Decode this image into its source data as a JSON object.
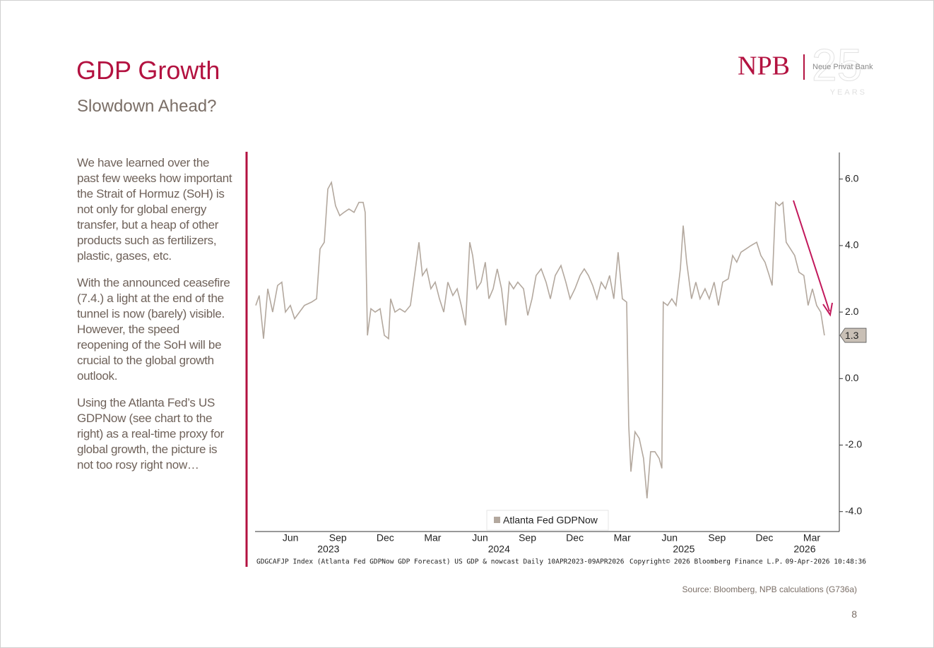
{
  "header": {
    "title": "GDP Growth",
    "subtitle": "Slowdown Ahead?"
  },
  "logo": {
    "name": "NPB",
    "subname": "Neue Privat Bank",
    "anniversary": "25",
    "years": "YEARS"
  },
  "body": {
    "paragraphs": [
      "We have learned over the past few weeks how important the Strait of Hormuz (SoH) is not only for global energy transfer, but a heap of other products such as fertilizers, plastic, gases, etc.",
      "With the announced ceasefire (7.4.) a light at the end of the tunnel is now (barely) visible. However, the speed reopening of the SoH will be crucial to the global growth outlook.",
      "Using the Atlanta Fed’s US GDPNow (see chart to the right) as a real-time proxy for global growth, the picture is not too rosy right now…"
    ]
  },
  "chart_data": {
    "type": "line",
    "x": [
      3.3,
      3.52,
      3.79,
      4.06,
      4.37,
      4.68,
      4.95,
      5.18,
      5.49,
      5.76,
      6.07,
      6.38,
      6.83,
      7.15,
      7.37,
      7.64,
      7.86,
      8.09,
      8.35,
      8.62,
      8.89,
      9.2,
      9.52,
      9.83,
      10.1,
      10.23,
      10.37,
      10.59,
      10.86,
      11.17,
      11.44,
      11.71,
      11.84,
      12.11,
      12.42,
      12.74,
      13.09,
      13.41,
      13.63,
      13.85,
      14.12,
      14.39,
      14.66,
      14.93,
      15.2,
      15.46,
      15.78,
      16.05,
      16.31,
      16.58,
      16.85,
      17.03,
      17.3,
      17.57,
      17.83,
      18.06,
      18.33,
      18.59,
      18.86,
      19.13,
      19.35,
      19.62,
      19.89,
      20.25,
      20.52,
      20.79,
      21.05,
      21.37,
      21.68,
      21.95,
      22.26,
      22.62,
      22.93,
      23.2,
      23.51,
      23.83,
      24.1,
      24.36,
      24.63,
      24.9,
      25.17,
      25.44,
      25.7,
      25.97,
      26.24,
      26.51,
      26.78,
      26.91,
      27.05,
      27.31,
      27.58,
      27.85,
      28.07,
      28.3,
      28.57,
      28.84,
      29.01,
      29.1,
      29.37,
      29.64,
      29.91,
      30.18,
      30.36,
      30.58,
      30.89,
      31.16,
      31.43,
      31.74,
      32.01,
      32.32,
      32.59,
      32.86,
      33.22,
      33.49,
      33.75,
      34.02,
      34.34,
      34.65,
      35.01,
      35.28,
      35.54,
      35.81,
      35.99,
      36.21,
      36.44,
      36.67,
      36.88,
      37.15,
      37.42,
      37.69,
      38.0,
      38.27,
      38.54,
      38.81,
      39.07,
      39.3
    ],
    "series": [
      {
        "name": "Atlanta Fed GDPNow",
        "color": "#b3a89e",
        "values": [
          2.2,
          2.5,
          1.2,
          2.7,
          2.0,
          2.8,
          2.9,
          2.0,
          2.2,
          1.8,
          2.0,
          2.2,
          2.3,
          2.4,
          3.9,
          4.1,
          5.7,
          5.9,
          5.2,
          4.9,
          5.0,
          5.1,
          5.0,
          5.3,
          5.3,
          5.0,
          1.3,
          2.1,
          2.0,
          2.1,
          1.3,
          1.2,
          2.4,
          2.0,
          2.1,
          2.0,
          2.2,
          3.3,
          4.1,
          3.1,
          3.3,
          2.7,
          2.9,
          2.4,
          2.0,
          2.9,
          2.5,
          2.7,
          2.2,
          1.6,
          4.1,
          3.7,
          2.7,
          2.9,
          3.5,
          2.4,
          2.7,
          3.3,
          2.7,
          1.6,
          2.9,
          2.7,
          2.9,
          2.7,
          1.9,
          2.4,
          3.1,
          3.3,
          2.9,
          2.4,
          3.1,
          3.4,
          2.9,
          2.4,
          2.7,
          3.1,
          3.3,
          3.1,
          2.8,
          2.4,
          2.9,
          2.7,
          3.1,
          2.4,
          3.8,
          2.4,
          2.3,
          -1.4,
          -2.8,
          -1.6,
          -1.8,
          -2.4,
          -3.6,
          -2.2,
          -2.2,
          -2.4,
          -2.7,
          2.3,
          2.2,
          2.4,
          2.2,
          3.3,
          4.6,
          3.5,
          2.4,
          2.9,
          2.4,
          2.7,
          2.4,
          2.9,
          2.2,
          2.9,
          3.0,
          3.7,
          3.5,
          3.8,
          3.9,
          4.0,
          4.1,
          3.7,
          3.5,
          3.1,
          2.8,
          5.3,
          5.2,
          5.3,
          4.1,
          3.9,
          3.7,
          3.2,
          3.1,
          2.2,
          2.7,
          2.2,
          2.0,
          1.3
        ]
      }
    ],
    "xlim": [
      3.3,
      40.2
    ],
    "ylim": [
      -4.6,
      6.8
    ],
    "xticks": [
      {
        "value": 5.5,
        "label": "Jun"
      },
      {
        "value": 8.5,
        "label": "Sep"
      },
      {
        "value": 11.5,
        "label": "Dec"
      },
      {
        "value": 14.5,
        "label": "Mar"
      },
      {
        "value": 17.5,
        "label": "Jun"
      },
      {
        "value": 20.5,
        "label": "Sep"
      },
      {
        "value": 23.5,
        "label": "Dec"
      },
      {
        "value": 26.5,
        "label": "Mar"
      },
      {
        "value": 29.5,
        "label": "Jun"
      },
      {
        "value": 32.5,
        "label": "Sep"
      },
      {
        "value": 35.5,
        "label": "Dec"
      },
      {
        "value": 38.5,
        "label": "Mar"
      }
    ],
    "year_labels": [
      {
        "value": 7.9,
        "label": "2023"
      },
      {
        "value": 18.7,
        "label": "2024"
      },
      {
        "value": 30.4,
        "label": "2025"
      },
      {
        "value": 38.05,
        "label": "2026"
      }
    ],
    "yticks": [
      {
        "value": 6,
        "label": "6.0"
      },
      {
        "value": 4,
        "label": "4.0"
      },
      {
        "value": 2,
        "label": "2.0"
      },
      {
        "value": 0,
        "label": "0.0"
      },
      {
        "value": -2,
        "label": "-2.0"
      },
      {
        "value": -4,
        "label": "-4.0"
      }
    ],
    "last_value": {
      "value": 1.3,
      "label": "1.3"
    },
    "legend": "bottom",
    "footnote": "GDGCAFJP Index (Atlanta Fed GDPNow GDP Forecast) US GDP & nowcast Daily 10APR2023-09APR2026",
    "copyright": "Copyright© 2026 Bloomberg Finance L.P.",
    "timestamp": "09-Apr-2026 10:48:36"
  },
  "source": "Source: Bloomberg, NPB calculations (G736a)",
  "page_number": "8"
}
